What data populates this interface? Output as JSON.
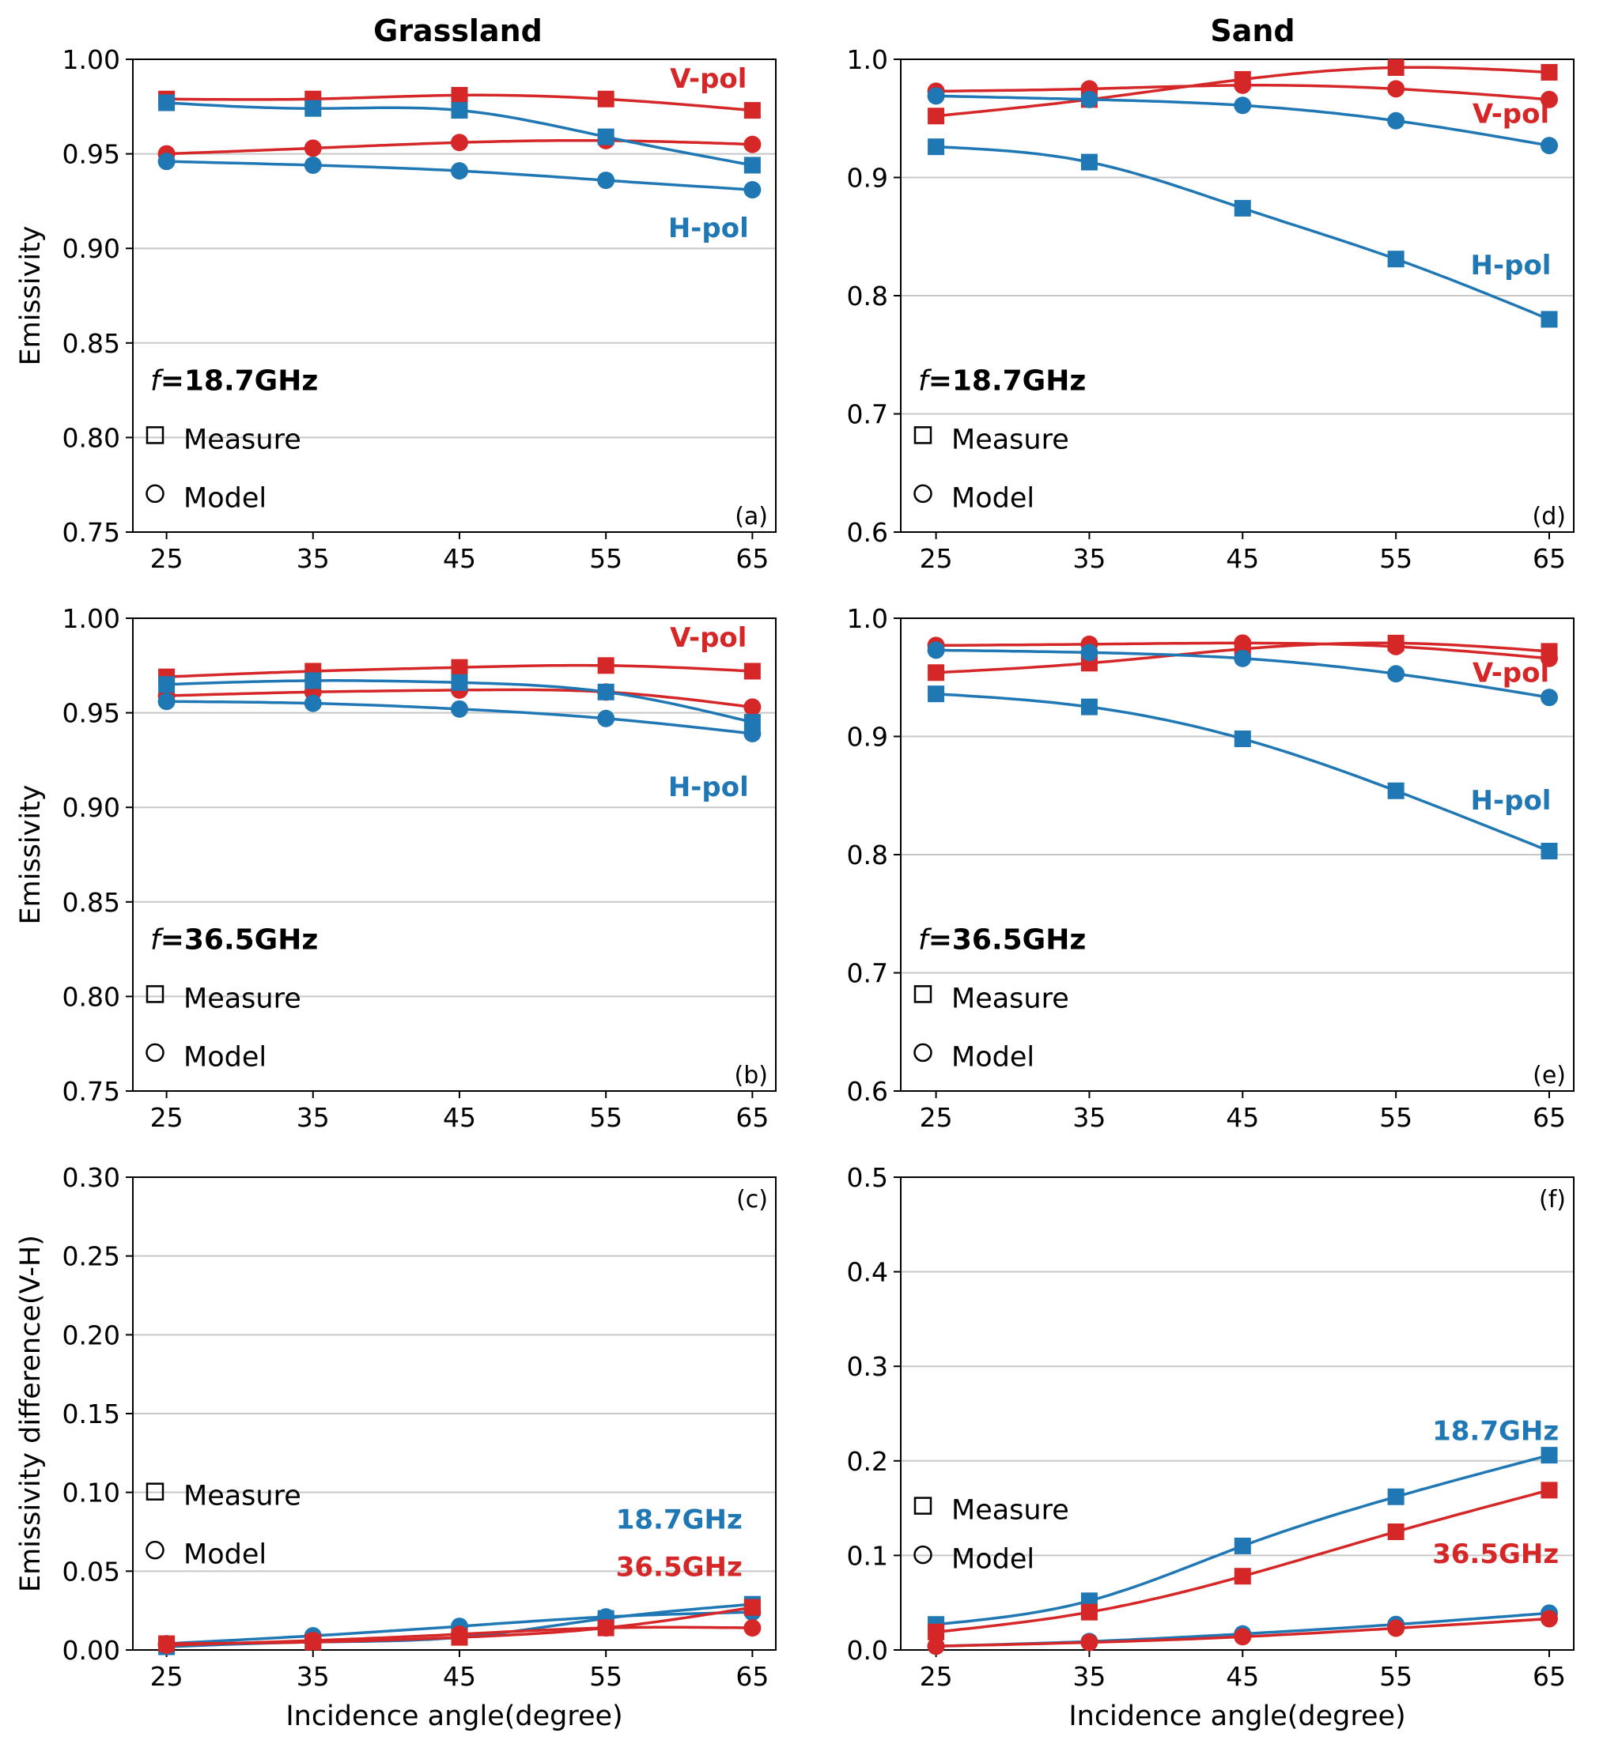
{
  "figure": {
    "column_titles": [
      "Grassland",
      "Sand"
    ],
    "xlabel": "Incidence angle(degree)"
  },
  "colors": {
    "v": "#d62728",
    "h": "#1f77b4",
    "grid": "#c8c8c8"
  },
  "chart_data": [
    {
      "id": "a",
      "tag": "(a)",
      "type": "line",
      "title": "Grassland",
      "xlabel": "",
      "ylabel": "Emissivity",
      "x": [
        25,
        35,
        45,
        55,
        65
      ],
      "ylim": [
        0.75,
        1.0
      ],
      "yticks": [
        0.75,
        0.8,
        0.85,
        0.9,
        0.95,
        1.0
      ],
      "ytick_decimals": 2,
      "grid": true,
      "freq_label": {
        "prefix": "f",
        "value": "=18.7GHz"
      },
      "legend": {
        "measure": "Measure",
        "model": "Model"
      },
      "series": [
        {
          "name": "V-pol Measure",
          "color": "v",
          "marker": "square",
          "values": [
            0.979,
            0.979,
            0.981,
            0.979,
            0.973
          ]
        },
        {
          "name": "V-pol Model",
          "color": "v",
          "marker": "circle",
          "values": [
            0.95,
            0.953,
            0.956,
            0.957,
            0.955
          ]
        },
        {
          "name": "H-pol Measure",
          "color": "h",
          "marker": "square",
          "values": [
            0.977,
            0.974,
            0.973,
            0.959,
            0.944
          ]
        },
        {
          "name": "H-pol Model",
          "color": "h",
          "marker": "circle",
          "values": [
            0.946,
            0.944,
            0.941,
            0.936,
            0.931
          ]
        }
      ],
      "annotations": [
        {
          "text": "V-pol",
          "color": "v",
          "x": 62,
          "y": 0.985
        },
        {
          "text": "H-pol",
          "color": "h",
          "x": 62,
          "y": 0.906
        }
      ]
    },
    {
      "id": "b",
      "tag": "(b)",
      "type": "line",
      "title": "",
      "xlabel": "",
      "ylabel": "Emissivity",
      "x": [
        25,
        35,
        45,
        55,
        65
      ],
      "ylim": [
        0.75,
        1.0
      ],
      "yticks": [
        0.75,
        0.8,
        0.85,
        0.9,
        0.95,
        1.0
      ],
      "ytick_decimals": 2,
      "grid": true,
      "freq_label": {
        "prefix": "f",
        "value": "=36.5GHz"
      },
      "legend": {
        "measure": "Measure",
        "model": "Model"
      },
      "series": [
        {
          "name": "V-pol Measure",
          "color": "v",
          "marker": "square",
          "values": [
            0.969,
            0.972,
            0.974,
            0.975,
            0.972
          ]
        },
        {
          "name": "V-pol Model",
          "color": "v",
          "marker": "circle",
          "values": [
            0.959,
            0.961,
            0.962,
            0.961,
            0.953
          ]
        },
        {
          "name": "H-pol Measure",
          "color": "h",
          "marker": "square",
          "values": [
            0.965,
            0.967,
            0.966,
            0.961,
            0.945
          ]
        },
        {
          "name": "H-pol Model",
          "color": "h",
          "marker": "circle",
          "values": [
            0.956,
            0.955,
            0.952,
            0.947,
            0.939
          ]
        }
      ],
      "annotations": [
        {
          "text": "V-pol",
          "color": "v",
          "x": 62,
          "y": 0.985
        },
        {
          "text": "H-pol",
          "color": "h",
          "x": 62,
          "y": 0.906
        }
      ]
    },
    {
      "id": "c",
      "tag": "(c)",
      "type": "line",
      "title": "",
      "xlabel": "Incidence angle(degree)",
      "ylabel": "Emissivity difference(V-H)",
      "x": [
        25,
        35,
        45,
        55,
        65
      ],
      "ylim": [
        0.0,
        0.3
      ],
      "yticks": [
        0.0,
        0.05,
        0.1,
        0.15,
        0.2,
        0.25,
        0.3
      ],
      "ytick_decimals": 2,
      "grid": true,
      "legend": {
        "measure": "Measure",
        "model": "Model"
      },
      "series": [
        {
          "name": "18.7GHz Measure",
          "color": "h",
          "marker": "square",
          "values": [
            0.002,
            0.005,
            0.008,
            0.02,
            0.029
          ]
        },
        {
          "name": "18.7GHz Model",
          "color": "h",
          "marker": "circle",
          "values": [
            0.004,
            0.009,
            0.015,
            0.021,
            0.024
          ]
        },
        {
          "name": "36.5GHz Measure",
          "color": "v",
          "marker": "square",
          "values": [
            0.004,
            0.005,
            0.008,
            0.014,
            0.027
          ]
        },
        {
          "name": "36.5GHz Model",
          "color": "v",
          "marker": "circle",
          "values": [
            0.003,
            0.006,
            0.01,
            0.014,
            0.014
          ]
        }
      ],
      "annotations": [
        {
          "text": "18.7GHz",
          "color": "h",
          "x": 60,
          "y": 0.077
        },
        {
          "text": "36.5GHz",
          "color": "v",
          "x": 60,
          "y": 0.047
        }
      ]
    },
    {
      "id": "d",
      "tag": "(d)",
      "type": "line",
      "title": "Sand",
      "xlabel": "",
      "ylabel": "",
      "x": [
        25,
        35,
        45,
        55,
        65
      ],
      "ylim": [
        0.6,
        1.0
      ],
      "yticks": [
        0.6,
        0.7,
        0.8,
        0.9,
        1.0
      ],
      "ytick_decimals": 1,
      "grid": true,
      "freq_label": {
        "prefix": "f",
        "value": "=18.7GHz"
      },
      "legend": {
        "measure": "Measure",
        "model": "Model"
      },
      "series": [
        {
          "name": "V-pol Measure",
          "color": "v",
          "marker": "square",
          "values": [
            0.952,
            0.966,
            0.983,
            0.993,
            0.989
          ]
        },
        {
          "name": "V-pol Model",
          "color": "v",
          "marker": "circle",
          "values": [
            0.973,
            0.975,
            0.978,
            0.975,
            0.966
          ]
        },
        {
          "name": "H-pol Measure",
          "color": "h",
          "marker": "square",
          "values": [
            0.926,
            0.913,
            0.874,
            0.831,
            0.78
          ]
        },
        {
          "name": "H-pol Model",
          "color": "h",
          "marker": "circle",
          "values": [
            0.969,
            0.966,
            0.961,
            0.948,
            0.927
          ]
        }
      ],
      "annotations": [
        {
          "text": "V-pol",
          "color": "v",
          "x": 62.5,
          "y": 0.946
        },
        {
          "text": "H-pol",
          "color": "h",
          "x": 62.5,
          "y": 0.818
        }
      ]
    },
    {
      "id": "e",
      "tag": "(e)",
      "type": "line",
      "title": "",
      "xlabel": "",
      "ylabel": "",
      "x": [
        25,
        35,
        45,
        55,
        65
      ],
      "ylim": [
        0.6,
        1.0
      ],
      "yticks": [
        0.6,
        0.7,
        0.8,
        0.9,
        1.0
      ],
      "ytick_decimals": 1,
      "grid": true,
      "freq_label": {
        "prefix": "f",
        "value": "=36.5GHz"
      },
      "legend": {
        "measure": "Measure",
        "model": "Model"
      },
      "series": [
        {
          "name": "V-pol Measure",
          "color": "v",
          "marker": "square",
          "values": [
            0.954,
            0.962,
            0.974,
            0.979,
            0.972
          ]
        },
        {
          "name": "V-pol Model",
          "color": "v",
          "marker": "circle",
          "values": [
            0.977,
            0.978,
            0.979,
            0.976,
            0.966
          ]
        },
        {
          "name": "H-pol Measure",
          "color": "h",
          "marker": "square",
          "values": [
            0.936,
            0.925,
            0.898,
            0.854,
            0.803
          ]
        },
        {
          "name": "H-pol Model",
          "color": "h",
          "marker": "circle",
          "values": [
            0.973,
            0.971,
            0.966,
            0.953,
            0.933
          ]
        }
      ],
      "annotations": [
        {
          "text": "V-pol",
          "color": "v",
          "x": 62.5,
          "y": 0.946
        },
        {
          "text": "H-pol",
          "color": "h",
          "x": 62.5,
          "y": 0.838
        }
      ]
    },
    {
      "id": "f",
      "tag": "(f)",
      "type": "line",
      "title": "",
      "xlabel": "Incidence angle(degree)",
      "ylabel": "",
      "x": [
        25,
        35,
        45,
        55,
        65
      ],
      "ylim": [
        0.0,
        0.5
      ],
      "yticks": [
        0.0,
        0.1,
        0.2,
        0.3,
        0.4,
        0.5
      ],
      "ytick_decimals": 1,
      "grid": true,
      "legend": {
        "measure": "Measure",
        "model": "Model"
      },
      "series": [
        {
          "name": "18.7GHz Measure",
          "color": "h",
          "marker": "square",
          "values": [
            0.027,
            0.052,
            0.11,
            0.162,
            0.206
          ]
        },
        {
          "name": "18.7GHz Model",
          "color": "h",
          "marker": "circle",
          "values": [
            0.004,
            0.009,
            0.017,
            0.027,
            0.039
          ]
        },
        {
          "name": "36.5GHz Measure",
          "color": "v",
          "marker": "square",
          "values": [
            0.019,
            0.04,
            0.078,
            0.125,
            0.169
          ]
        },
        {
          "name": "36.5GHz Model",
          "color": "v",
          "marker": "circle",
          "values": [
            0.004,
            0.008,
            0.014,
            0.023,
            0.033
          ]
        }
      ],
      "annotations": [
        {
          "text": "18.7GHz",
          "color": "h",
          "x": 61.5,
          "y": 0.222
        },
        {
          "text": "36.5GHz",
          "color": "v",
          "x": 61.5,
          "y": 0.092
        }
      ]
    }
  ]
}
